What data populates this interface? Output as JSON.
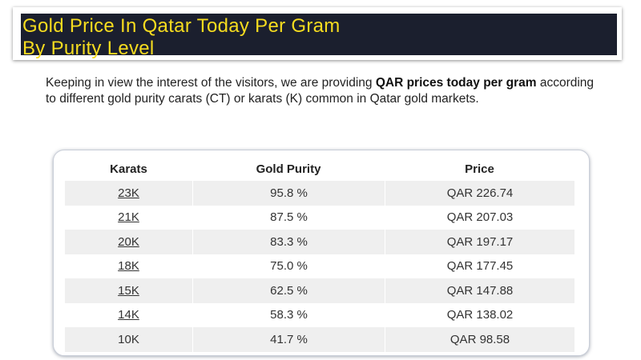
{
  "header": {
    "title_line1": "Gold Price In Qatar Today Per Gram",
    "title_line2": "By Purity Level"
  },
  "intro": {
    "text_before": "Keeping in view the interest of the visitors, we are providing ",
    "bold": "QAR prices today per gram",
    "text_after": " according to different gold purity carats (CT) or karats (K) common in Qatar gold markets."
  },
  "table": {
    "headers": [
      "Karats",
      "Gold Purity",
      "Price"
    ],
    "rows": [
      {
        "karat": "23K",
        "purity": "95.8 %",
        "price": "QAR 226.74",
        "link": true
      },
      {
        "karat": "21K",
        "purity": "87.5 %",
        "price": "QAR 207.03",
        "link": true
      },
      {
        "karat": "20K",
        "purity": "83.3 %",
        "price": "QAR 197.17",
        "link": true
      },
      {
        "karat": "18K",
        "purity": "75.0 %",
        "price": "QAR 177.45",
        "link": true
      },
      {
        "karat": "15K",
        "purity": "62.5 %",
        "price": "QAR 147.88",
        "link": true
      },
      {
        "karat": "14K",
        "purity": "58.3 %",
        "price": "QAR 138.02",
        "link": true
      },
      {
        "karat": "10K",
        "purity": "41.7 %",
        "price": "QAR 98.58",
        "link": false
      }
    ]
  },
  "colors": {
    "title_bg": "#1b1f2e",
    "title_text": "#f6dc1f",
    "row_alt": "#efefef"
  }
}
